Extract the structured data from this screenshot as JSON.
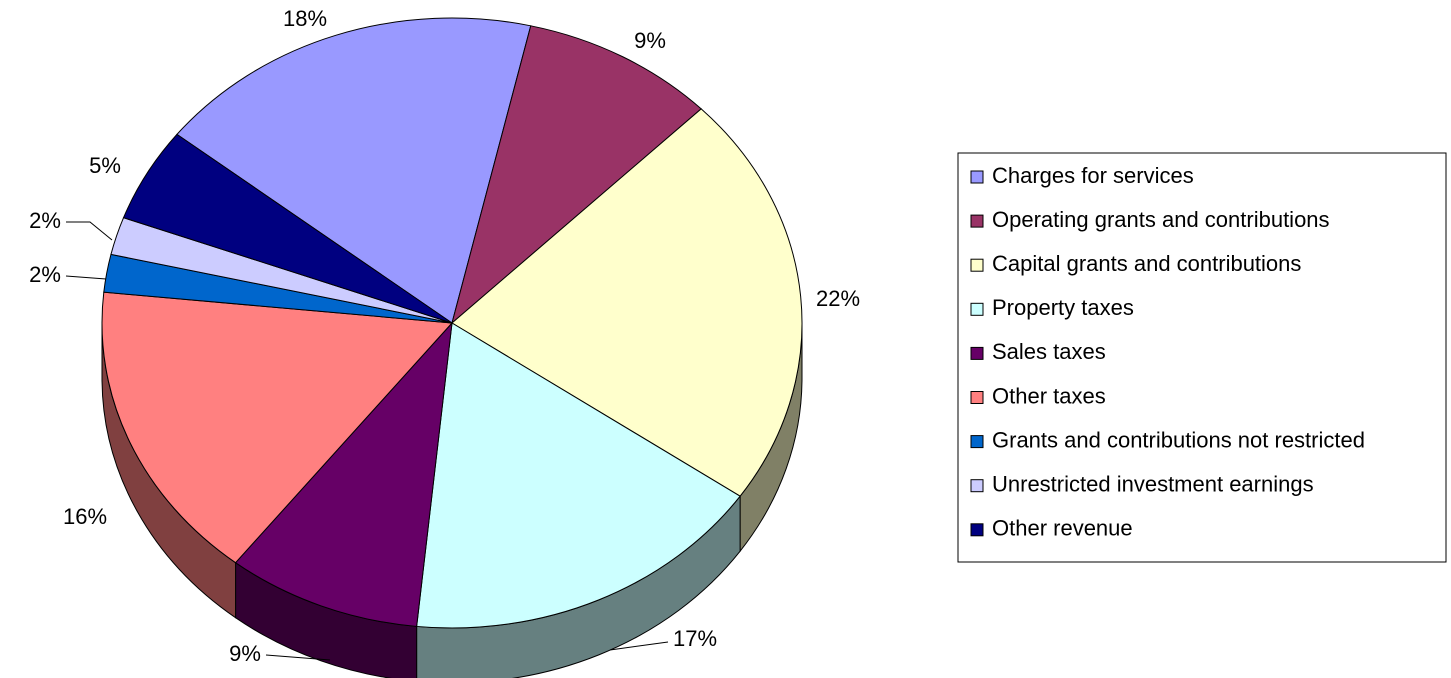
{
  "chart_data": {
    "type": "pie",
    "categories": [
      "Charges for services",
      "Operating grants and contributions",
      "Capital grants and contributions",
      "Property taxes",
      "Sales taxes",
      "Other taxes",
      "Grants and contributions not restricted",
      "Unrestricted investment earnings",
      "Other revenue"
    ],
    "values": [
      18,
      9,
      22,
      17,
      9,
      16,
      2,
      2,
      5
    ],
    "value_labels": [
      "18%",
      "9%",
      "22%",
      "17%",
      "9%",
      "16%",
      "2%",
      "2%",
      "5%"
    ],
    "colors": [
      "#9999ff",
      "#993366",
      "#ffffcc",
      "#ccffff",
      "#660066",
      "#ff8080",
      "#0066cc",
      "#ccccff",
      "#000080"
    ],
    "legend": "right"
  }
}
